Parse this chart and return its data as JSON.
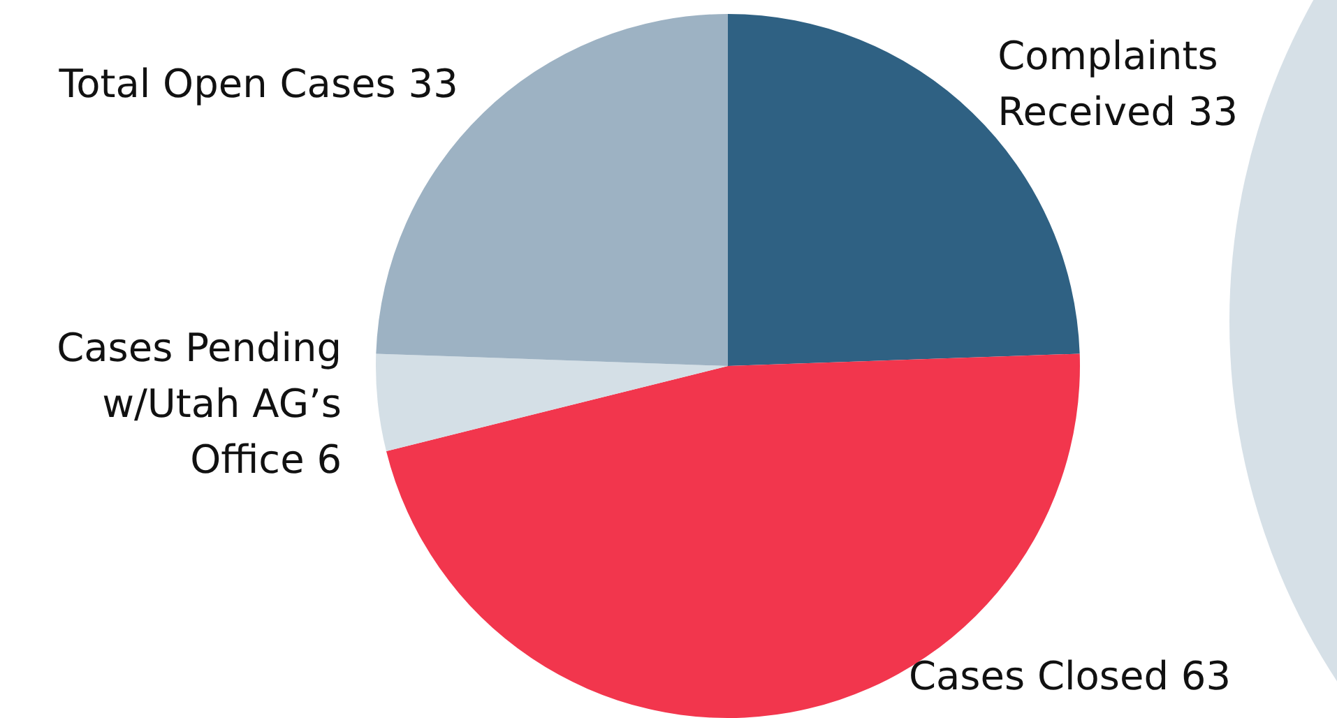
{
  "chart_data": {
    "type": "pie",
    "categories": [
      "Complaints Received",
      "Cases Closed",
      "Cases Pending w/Utah AG’s Office",
      "Total Open Cases"
    ],
    "values": [
      33,
      63,
      6,
      33
    ],
    "colors": [
      "#2f6183",
      "#f2364d",
      "#d4dfe6",
      "#9db2c3"
    ],
    "data_labels": true,
    "legend": false
  }
}
